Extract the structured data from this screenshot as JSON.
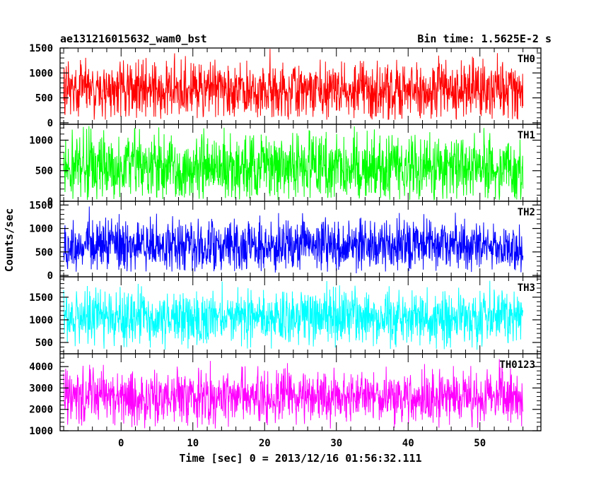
{
  "chart_data": {
    "type": "line",
    "title_left": "ae131216015632_wam0_bst",
    "title_right": "Bin time: 1.5625E-2 s",
    "xlabel": "Time [sec] 0 = 2013/12/16 01:56:32.111",
    "ylabel": "Counts/sec",
    "xlim": [
      -8.5,
      58.5
    ],
    "data_x_range": [
      -8,
      56
    ],
    "bin_time": 0.015625,
    "x_ticks": [
      0,
      10,
      20,
      30,
      40,
      50
    ],
    "x_minor_step": 2,
    "grid": false,
    "series": [
      {
        "name": "TH0",
        "color": "#ff0000",
        "ylim": [
          -30,
          1500
        ],
        "y_ticks": [
          0,
          500,
          1000,
          1500
        ],
        "y_minor_step": 100,
        "mean_level": 650,
        "typical_low": 200,
        "typical_high": 1100,
        "peak_high": 1500,
        "trough_low": 60
      },
      {
        "name": "TH1",
        "color": "#00ff00",
        "ylim": [
          0,
          1260
        ],
        "y_ticks": [
          0,
          500,
          1000
        ],
        "y_minor_step": 100,
        "mean_level": 560,
        "typical_low": 150,
        "typical_high": 1000,
        "peak_high": 1240,
        "trough_low": 20
      },
      {
        "name": "TH2",
        "color": "#0000ff",
        "ylim": [
          -30,
          1580
        ],
        "y_ticks": [
          0,
          500,
          1000,
          1500
        ],
        "y_minor_step": 100,
        "mean_level": 640,
        "typical_low": 200,
        "typical_high": 1100,
        "peak_high": 1560,
        "trough_low": 40
      },
      {
        "name": "TH3",
        "color": "#00ffff",
        "ylim": [
          250,
          1950
        ],
        "y_ticks": [
          500,
          1000,
          1500
        ],
        "y_minor_step": 100,
        "mean_level": 1050,
        "typical_low": 550,
        "typical_high": 1500,
        "peak_high": 1900,
        "trough_low": 330
      },
      {
        "name": "TH0123",
        "color": "#ff00ff",
        "ylim": [
          1000,
          4600
        ],
        "y_ticks": [
          1000,
          2000,
          3000,
          4000
        ],
        "y_minor_step": 200,
        "mean_level": 2550,
        "typical_low": 1600,
        "typical_high": 3600,
        "peak_high": 4500,
        "trough_low": 1100
      }
    ]
  }
}
